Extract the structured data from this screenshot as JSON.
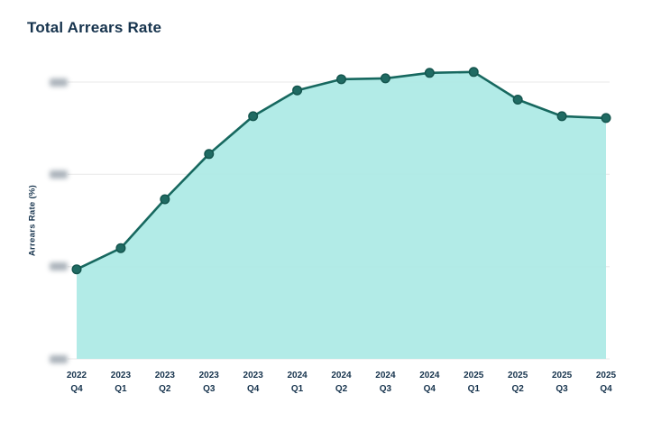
{
  "chart_data": {
    "type": "area",
    "title": "Total Arrears Rate",
    "ylabel": "Arrears Rate (%)",
    "categories": [
      "2022 Q4",
      "2023 Q1",
      "2023 Q2",
      "2023 Q3",
      "2023 Q4",
      "2024 Q1",
      "2024 Q2",
      "2024 Q3",
      "2024 Q4",
      "2025 Q1",
      "2025 Q2",
      "2025 Q3",
      "2025 Q4"
    ],
    "values": [
      0.97,
      1.2,
      1.73,
      2.22,
      2.63,
      2.91,
      3.03,
      3.04,
      3.1,
      3.11,
      2.81,
      2.63,
      2.61
    ],
    "value_units": "relative gridline units (y-axis tick labels are blurred/redacted in source)",
    "y_axis": {
      "tick_values": [
        0,
        1,
        2,
        3
      ],
      "tick_labels_redacted": true,
      "tick_count": 4
    },
    "ylim": [
      0,
      3.5
    ],
    "grid": true,
    "legend": false,
    "colors": {
      "title_text": "#16334d",
      "axis_text": "#16334d",
      "line": "#17685f",
      "marker_fill": "#206b63",
      "marker_stroke": "#14554e",
      "area_fill": "#aae9e4",
      "gridline": "#ededed",
      "redacted_tick_blob": "#8e99a3"
    }
  }
}
